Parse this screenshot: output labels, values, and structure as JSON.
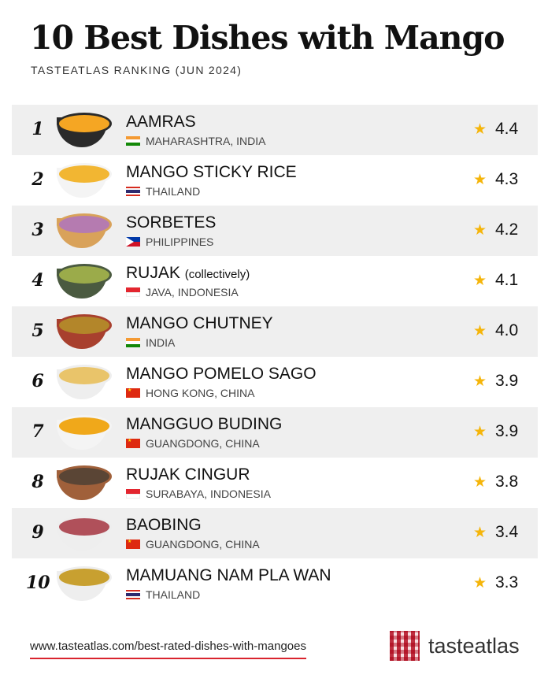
{
  "title": "10 Best Dishes with Mango",
  "subtitle": "TASTEATLAS RANKING (JUN 2024)",
  "items": [
    {
      "rank": "1",
      "name": "AAMRAS",
      "note": "",
      "origin": "MAHARASHTRA, INDIA",
      "flag": "india",
      "rating": "4.4",
      "food": "#f5a623",
      "bowl": "#2a2a2a"
    },
    {
      "rank": "2",
      "name": "MANGO STICKY RICE",
      "note": "",
      "origin": "THAILAND",
      "flag": "thailand",
      "rating": "4.3",
      "food": "#f2b632",
      "bowl": "#f4f4f4"
    },
    {
      "rank": "3",
      "name": "SORBETES",
      "note": "",
      "origin": "PHILIPPINES",
      "flag": "philippines",
      "rating": "4.2",
      "food": "#b57bb0",
      "bowl": "#d9a25a"
    },
    {
      "rank": "4",
      "name": "RUJAK",
      "note": "(collectively)",
      "origin": "JAVA, INDONESIA",
      "flag": "indonesia",
      "rating": "4.1",
      "food": "#9bab4a",
      "bowl": "#4a5a40"
    },
    {
      "rank": "5",
      "name": "MANGO CHUTNEY",
      "note": "",
      "origin": "INDIA",
      "flag": "india",
      "rating": "4.0",
      "food": "#b3862a",
      "bowl": "#a8402e"
    },
    {
      "rank": "6",
      "name": "MANGO POMELO SAGO",
      "note": "",
      "origin": "HONG KONG, CHINA",
      "flag": "china",
      "rating": "3.9",
      "food": "#e9c46a",
      "bowl": "#eeeeee"
    },
    {
      "rank": "7",
      "name": "MANGGUO BUDING",
      "note": "",
      "origin": "GUANGDONG, CHINA",
      "flag": "china",
      "rating": "3.9",
      "food": "#f0a81a",
      "bowl": "#f4f4f4"
    },
    {
      "rank": "8",
      "name": "RUJAK CINGUR",
      "note": "",
      "origin": "SURABAYA, INDONESIA",
      "flag": "indonesia",
      "rating": "3.8",
      "food": "#5a4535",
      "bowl": "#a0603a"
    },
    {
      "rank": "9",
      "name": "BAOBING",
      "note": "",
      "origin": "GUANGDONG, CHINA",
      "flag": "china",
      "rating": "3.4",
      "food": "#b0505a",
      "bowl": "#eeeeee"
    },
    {
      "rank": "10",
      "name": "MAMUANG NAM PLA WAN",
      "note": "",
      "origin": "THAILAND",
      "flag": "thailand",
      "rating": "3.3",
      "food": "#c8a030",
      "bowl": "#eeeeee"
    }
  ],
  "footer": {
    "url": "www.tasteatlas.com/best-rated-dishes-with-mangoes",
    "logo": "tasteatlas"
  },
  "colors": {
    "star": "#f5b50a",
    "underline": "#d9242e",
    "row_alt": "#efefef"
  }
}
